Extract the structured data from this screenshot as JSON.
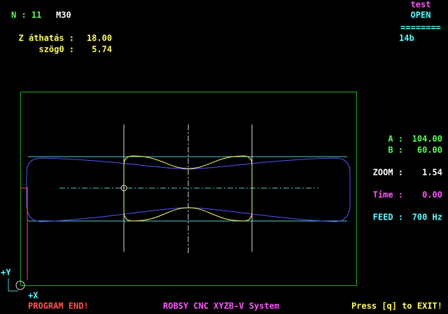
{
  "header": {
    "n_label": "N : 11",
    "m_code": "M30",
    "z_label": "Z áthatás :",
    "z_value": "18.00",
    "angle_label": "szög0 :",
    "angle_value": "5.74"
  },
  "status": {
    "file": "test",
    "state": "OPEN",
    "separator": "========",
    "code": "14b"
  },
  "readout": {
    "a_label": "A :",
    "a_value": "104.00",
    "b_label": "B :",
    "b_value": "60.00",
    "zoom_label": "ZOOM :",
    "zoom_value": "1.54",
    "time_label": "Time :",
    "time_value": "0.00",
    "feed_label": "FEED :",
    "feed_value": "700 Hz"
  },
  "axes": {
    "y_label": "+Y",
    "x_label": "+X"
  },
  "footer": {
    "message": "PROGRAM END!",
    "system": "ROBSY CNC XYZB-V System",
    "exit_hint": "Press [q] to EXIT!"
  }
}
